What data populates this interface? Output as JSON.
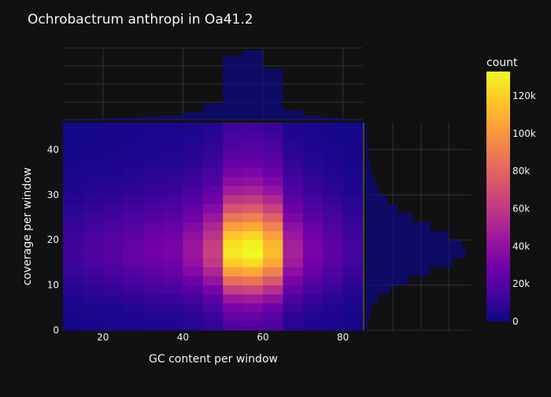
{
  "colors": {
    "background": "#111111",
    "grid": "#283442",
    "text": "#f2f5fa",
    "marginal_fill": "#0d0887",
    "colorscale": [
      "#0d0887",
      "#46039f",
      "#7201a8",
      "#9c179e",
      "#bd3786",
      "#d8576b",
      "#ed7953",
      "#fb9f3a",
      "#fdca26",
      "#f0f921"
    ]
  },
  "chart_data": {
    "type": "heatmap",
    "title": "Ochrobactrum anthropi in Oa41.2",
    "xlabel": "GC content per window",
    "ylabel": "coverage per window",
    "xlim": [
      10,
      85
    ],
    "ylim": [
      0,
      46
    ],
    "xticks": [
      "20",
      "40",
      "60",
      "80"
    ],
    "yticks": [
      "0",
      "10",
      "20",
      "30",
      "40"
    ],
    "colorbar": {
      "title": "count",
      "min": 0,
      "max": 133000,
      "ticks": [
        "0",
        "20k",
        "40k",
        "60k",
        "80k",
        "100k",
        "120k"
      ]
    },
    "x_bin_edges": [
      10,
      15,
      20,
      25,
      30,
      35,
      40,
      45,
      50,
      55,
      60,
      65,
      70,
      75,
      80,
      85
    ],
    "y_bin_width": 2,
    "x_marginal_counts": [
      500,
      900,
      1200,
      1800,
      2500,
      3000,
      5500,
      12000,
      48000,
      52000,
      38000,
      7000,
      3000,
      1500,
      600
    ],
    "y_marginal_counts": [
      3000,
      4500,
      8000,
      16000,
      32000,
      56000,
      85000,
      115000,
      132000,
      128000,
      110000,
      86000,
      62000,
      42000,
      28000,
      18000,
      12000,
      8000,
      5000,
      3500,
      2500,
      1800,
      1300
    ]
  }
}
